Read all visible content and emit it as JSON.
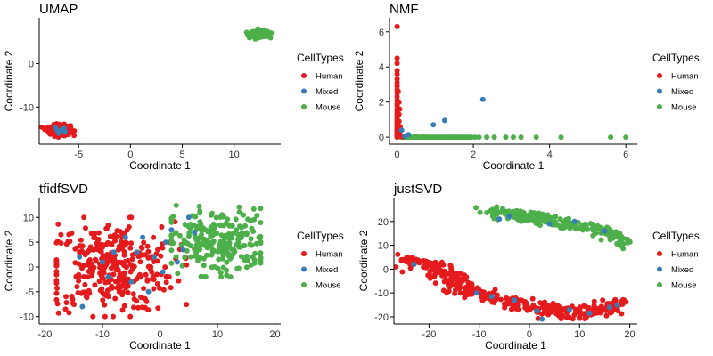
{
  "colors": {
    "Human": "#E41A1C",
    "Mixed": "#377EB8",
    "Mouse": "#4DAF4A"
  },
  "legend": {
    "title": "CellTypes",
    "labels": [
      "Human",
      "Mixed",
      "Mouse"
    ]
  },
  "chart_data": [
    {
      "type": "scatter",
      "title": "UMAP",
      "xlabel": "Coordinate 1",
      "ylabel": "Coordinate 2",
      "xlim": [
        -8.8,
        14.5
      ],
      "ylim": [
        -18.5,
        10.5
      ],
      "xticks": [
        -5,
        0,
        5,
        10
      ],
      "yticks": [
        -10,
        0
      ],
      "legend_position": "right",
      "clusters": [
        {
          "series": "Human",
          "center": [
            -6.8,
            -15.3
          ],
          "spread": [
            0.5,
            0.6
          ],
          "count": 260
        },
        {
          "series": "Mouse",
          "center": [
            12.5,
            6.8
          ],
          "spread": [
            0.45,
            0.35
          ],
          "count": 220
        }
      ],
      "series": [
        {
          "name": "Mixed",
          "points": [
            [
              -7.0,
              -15.5
            ],
            [
              -6.4,
              -14.9
            ],
            [
              -6.9,
              -16.0
            ],
            [
              -6.6,
              -15.2
            ],
            [
              -7.2,
              -14.8
            ],
            [
              -6.3,
              -15.7
            ]
          ]
        }
      ]
    },
    {
      "type": "scatter",
      "title": "NMF",
      "xlabel": "Coordinate 1",
      "ylabel": "Coordinate 2",
      "xlim": [
        -0.2,
        6.3
      ],
      "ylim": [
        -0.4,
        6.8
      ],
      "xticks": [
        0,
        2,
        4,
        6
      ],
      "yticks": [
        0,
        2,
        4,
        6
      ],
      "legend_position": "right",
      "series": [
        {
          "name": "Human",
          "points": [
            [
              0,
              6.3
            ],
            [
              0,
              4.5
            ],
            [
              0,
              4.2
            ],
            [
              0,
              3.8
            ],
            [
              0,
              3.6
            ],
            [
              0,
              3.3
            ],
            [
              0,
              3.1
            ],
            [
              0,
              2.9
            ],
            [
              0,
              2.7
            ],
            [
              0,
              2.5
            ],
            [
              0,
              2.3
            ],
            [
              0,
              2.1
            ],
            [
              0,
              1.9
            ],
            [
              0,
              1.8
            ],
            [
              0,
              1.6
            ],
            [
              0,
              1.5
            ],
            [
              0,
              1.4
            ],
            [
              0,
              1.3
            ],
            [
              0,
              1.2
            ],
            [
              0,
              1.1
            ],
            [
              0,
              1.0
            ],
            [
              0,
              0.9
            ],
            [
              0,
              0.85
            ],
            [
              0,
              0.8
            ],
            [
              0,
              0.7
            ],
            [
              0,
              0.65
            ],
            [
              0,
              0.6
            ],
            [
              0,
              0.55
            ],
            [
              0,
              0.5
            ],
            [
              0,
              0.45
            ],
            [
              0,
              0.4
            ],
            [
              0,
              0.35
            ],
            [
              0,
              0.3
            ],
            [
              0,
              0.25
            ],
            [
              0,
              0.2
            ],
            [
              0,
              0.15
            ],
            [
              0,
              0.1
            ],
            [
              0,
              0.05
            ],
            [
              0,
              0.0
            ],
            [
              0.05,
              1.3
            ],
            [
              0.05,
              0.9
            ],
            [
              0.08,
              0.6
            ],
            [
              0.04,
              0.4
            ],
            [
              0.06,
              0.2
            ],
            [
              0.1,
              0.1
            ],
            [
              0.05,
              2.0
            ],
            [
              0.03,
              2.6
            ],
            [
              0.07,
              1.6
            ],
            [
              0.12,
              0.05
            ],
            [
              0.15,
              0.02
            ]
          ]
        },
        {
          "name": "Mixed",
          "points": [
            [
              2.25,
              2.15
            ],
            [
              1.25,
              0.95
            ],
            [
              0.95,
              0.7
            ],
            [
              0.12,
              0.4
            ],
            [
              0.3,
              0.15
            ],
            [
              0.2,
              0.05
            ]
          ]
        },
        {
          "name": "Mouse",
          "points": [
            [
              0.1,
              0
            ],
            [
              0.15,
              0
            ],
            [
              0.2,
              0
            ],
            [
              0.25,
              0
            ],
            [
              0.3,
              0
            ],
            [
              0.35,
              0
            ],
            [
              0.4,
              0
            ],
            [
              0.45,
              0
            ],
            [
              0.5,
              0
            ],
            [
              0.55,
              0
            ],
            [
              0.6,
              0
            ],
            [
              0.65,
              0
            ],
            [
              0.7,
              0
            ],
            [
              0.75,
              0
            ],
            [
              0.8,
              0
            ],
            [
              0.85,
              0
            ],
            [
              0.9,
              0
            ],
            [
              0.95,
              0
            ],
            [
              1.0,
              0
            ],
            [
              1.05,
              0
            ],
            [
              1.1,
              0
            ],
            [
              1.15,
              0
            ],
            [
              1.2,
              0
            ],
            [
              1.25,
              0
            ],
            [
              1.3,
              0
            ],
            [
              1.35,
              0
            ],
            [
              1.4,
              0
            ],
            [
              1.45,
              0
            ],
            [
              1.5,
              0
            ],
            [
              1.55,
              0
            ],
            [
              1.6,
              0
            ],
            [
              1.65,
              0
            ],
            [
              1.7,
              0
            ],
            [
              1.75,
              0
            ],
            [
              1.8,
              0
            ],
            [
              1.85,
              0
            ],
            [
              1.9,
              0
            ],
            [
              1.95,
              0
            ],
            [
              2.05,
              0
            ],
            [
              2.15,
              0
            ],
            [
              2.35,
              0
            ],
            [
              2.55,
              0
            ],
            [
              2.85,
              0
            ],
            [
              3.05,
              0
            ],
            [
              3.25,
              0
            ],
            [
              3.65,
              0
            ],
            [
              4.3,
              0
            ],
            [
              5.6,
              0
            ],
            [
              6.0,
              0
            ],
            [
              0.5,
              0.05
            ],
            [
              0.25,
              0.1
            ],
            [
              0.7,
              0.03
            ]
          ]
        }
      ]
    },
    {
      "type": "scatter",
      "title": "tfidfSVD",
      "xlabel": "Coordinate 1",
      "ylabel": "Coordinate 2",
      "xlim": [
        -21,
        21
      ],
      "ylim": [
        -11.5,
        14
      ],
      "xticks": [
        -20,
        -10,
        0,
        10,
        20
      ],
      "yticks": [
        -10,
        -5,
        0,
        5,
        10
      ],
      "legend_position": "right",
      "clusters": [
        {
          "series": "Human",
          "center": [
            -8.5,
            0
          ],
          "spread": [
            5.5,
            4.5
          ],
          "count": 320,
          "xrange": [
            -18,
            6
          ],
          "yrange": [
            -10,
            10
          ]
        },
        {
          "series": "Mouse",
          "center": [
            10,
            5
          ],
          "spread": [
            4.5,
            3.3
          ],
          "count": 240,
          "xrange": [
            2,
            17.5
          ],
          "yrange": [
            -2,
            13
          ]
        }
      ],
      "series": [
        {
          "name": "Mixed",
          "points": [
            [
              -13.5,
              -8
            ],
            [
              -8,
              3
            ],
            [
              -3,
              6
            ],
            [
              2,
              7.5
            ],
            [
              5,
              10
            ],
            [
              1,
              5
            ],
            [
              -5,
              -3
            ],
            [
              -2,
              -5
            ],
            [
              3,
              1
            ],
            [
              -10,
              1
            ],
            [
              -6,
              6
            ],
            [
              -1,
              2
            ],
            [
              -9,
              -2
            ],
            [
              6,
              7
            ],
            [
              -14,
              2
            ],
            [
              -4,
              3
            ],
            [
              0.5,
              -1
            ],
            [
              4,
              3.5
            ]
          ]
        }
      ]
    },
    {
      "type": "scatter",
      "title": "justSVD",
      "xlabel": "Coordinate 1",
      "ylabel": "Coordinate 2",
      "xlim": [
        -27,
        21.5
      ],
      "ylim": [
        -23,
        30
      ],
      "xticks": [
        -20,
        -10,
        0,
        10,
        20
      ],
      "yticks": [
        -20,
        -10,
        0,
        10,
        20
      ],
      "legend_position": "right",
      "curves": [
        {
          "series": "Human",
          "path": [
            [
              -25,
              4
            ],
            [
              -20,
              2
            ],
            [
              -16,
              -4
            ],
            [
              -13,
              -8
            ],
            [
              -10,
              -11
            ],
            [
              -5,
              -13
            ],
            [
              0,
              -16
            ],
            [
              5,
              -17.5
            ],
            [
              10,
              -18
            ],
            [
              15,
              -17
            ],
            [
              18.5,
              -14
            ]
          ],
          "jitter": 1.3,
          "count": 380
        },
        {
          "series": "Mouse",
          "path": [
            [
              -8,
              24
            ],
            [
              -4,
              23.5
            ],
            [
              0,
              22
            ],
            [
              5,
              20
            ],
            [
              10,
              18
            ],
            [
              14,
              16.5
            ],
            [
              17,
              14
            ],
            [
              19,
              11
            ]
          ],
          "jitter": 1.1,
          "count": 230
        }
      ],
      "series": [
        {
          "name": "Mixed",
          "points": [
            [
              -23,
              2
            ],
            [
              -10.5,
              -10
            ],
            [
              -7.5,
              -11.5
            ],
            [
              -3,
              -13
            ],
            [
              1.5,
              -17.5
            ],
            [
              2.5,
              -21
            ],
            [
              8,
              -17
            ],
            [
              12,
              -18.5
            ],
            [
              16,
              -16
            ],
            [
              17.5,
              -15
            ],
            [
              -6,
              21
            ],
            [
              -4,
              22
            ],
            [
              4,
              19
            ],
            [
              9,
              20
            ],
            [
              15,
              16
            ]
          ]
        }
      ]
    }
  ]
}
